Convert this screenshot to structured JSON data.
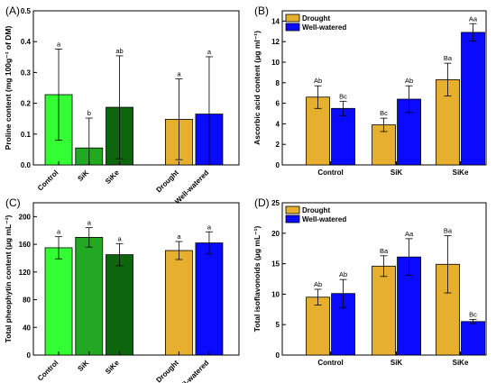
{
  "chart_data": [
    {
      "panel": "(A)",
      "type": "bar",
      "ylabel": "Proline content (mg 100g⁻¹ of DM)",
      "ylim": [
        0,
        0.5
      ],
      "yticks": [
        "0.0",
        "0.1",
        "0.2",
        "0.3",
        "0.4",
        "0.5"
      ],
      "categories": [
        "Control",
        "SiK",
        "SiKe",
        "Drought",
        "Well-watered"
      ],
      "values": [
        0.228,
        0.055,
        0.187,
        0.148,
        0.165
      ],
      "errors": [
        0.148,
        0.097,
        0.167,
        0.131,
        0.186
      ],
      "letters": [
        "a",
        "b",
        "ab",
        "a",
        "a"
      ],
      "colors": [
        "#33ff33",
        "#22a822",
        "#0d660d",
        "#e6b02e",
        "#0a0aff"
      ],
      "grid": false
    },
    {
      "panel": "(B)",
      "type": "bar",
      "ylabel": "Ascorbic acid content (μg ml⁻¹)",
      "ylim": [
        0,
        15
      ],
      "yticks": [
        "0",
        "2",
        "4",
        "6",
        "8",
        "10",
        "12",
        "14"
      ],
      "categories": [
        "Control",
        "SiK",
        "SiKe"
      ],
      "series": [
        {
          "name": "Drought",
          "color": "#e6b02e",
          "values": [
            6.6,
            3.9,
            8.3
          ],
          "errors": [
            1.1,
            0.65,
            1.6
          ],
          "letters": [
            "Ab",
            "Bc",
            "Ba"
          ]
        },
        {
          "name": "Well-watered",
          "color": "#0a0aff",
          "values": [
            5.5,
            6.4,
            12.9
          ],
          "errors": [
            0.7,
            1.3,
            0.85
          ],
          "letters": [
            "Bc",
            "Ab",
            "Aa"
          ]
        }
      ],
      "legend": "top-left",
      "grid": false
    },
    {
      "panel": "(C)",
      "type": "bar",
      "ylabel": "Total pheophytin content (μg mL⁻¹)",
      "ylim": [
        0,
        220
      ],
      "yticks": [
        "0",
        "40",
        "80",
        "120",
        "160",
        "200"
      ],
      "categories": [
        "Control",
        "SiK",
        "SiKe",
        "Drought",
        "Well-watered"
      ],
      "values": [
        155,
        170,
        145,
        151,
        162
      ],
      "errors": [
        16,
        14,
        16,
        13,
        16
      ],
      "letters": [
        "a",
        "a",
        "a",
        "a",
        "a"
      ],
      "colors": [
        "#33ff33",
        "#22a822",
        "#0d660d",
        "#e6b02e",
        "#0a0aff"
      ],
      "grid": false
    },
    {
      "panel": "(D)",
      "type": "bar",
      "ylabel": "Total isoflavonoids (μg mL⁻¹)",
      "ylim": [
        0,
        25
      ],
      "yticks": [
        "0",
        "5",
        "10",
        "15",
        "20",
        "25"
      ],
      "categories": [
        "Control",
        "SiK",
        "SiKe"
      ],
      "series": [
        {
          "name": "Drought",
          "color": "#e6b02e",
          "values": [
            9.5,
            14.6,
            14.9
          ],
          "errors": [
            1.3,
            1.7,
            4.7
          ],
          "letters": [
            "Ab",
            "Ba",
            "Ba"
          ]
        },
        {
          "name": "Well-watered",
          "color": "#0a0aff",
          "values": [
            10.1,
            16.1,
            5.5
          ],
          "errors": [
            2.3,
            3.0,
            0.35
          ],
          "letters": [
            "Ab",
            "Aa",
            "Bc"
          ]
        }
      ],
      "legend": "top-left",
      "grid": false
    }
  ]
}
